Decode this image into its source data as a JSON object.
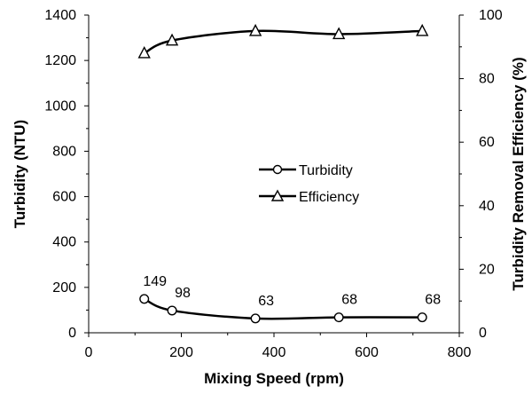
{
  "chart_data": {
    "type": "line",
    "xlabel": "Mixing Speed (rpm)",
    "ylabel": "Turbidity (NTU)",
    "y2label": "Turbidity Removal Efficiency (%)",
    "xlim": [
      0,
      800
    ],
    "ylim": [
      0,
      1400
    ],
    "y2lim": [
      0,
      100
    ],
    "x_ticks": [
      "0",
      "200",
      "400",
      "600",
      "800"
    ],
    "y_ticks": [
      "0",
      "200",
      "400",
      "600",
      "800",
      "1000",
      "1200",
      "1400"
    ],
    "y2_ticks": [
      "0",
      "20",
      "40",
      "60",
      "80",
      "100"
    ],
    "grid": false,
    "legend_position": "center",
    "series": [
      {
        "name": "Turbidity",
        "axis": "left",
        "marker": "circle",
        "x": [
          120,
          180,
          360,
          540,
          720
        ],
        "y": [
          149,
          98,
          63,
          68,
          68
        ],
        "labels": [
          "149",
          "98",
          "63",
          "68",
          "68"
        ]
      },
      {
        "name": "Efficiency",
        "axis": "right",
        "marker": "triangle",
        "x": [
          120,
          180,
          360,
          540,
          720
        ],
        "y": [
          88,
          92,
          95,
          94,
          95
        ]
      }
    ]
  }
}
